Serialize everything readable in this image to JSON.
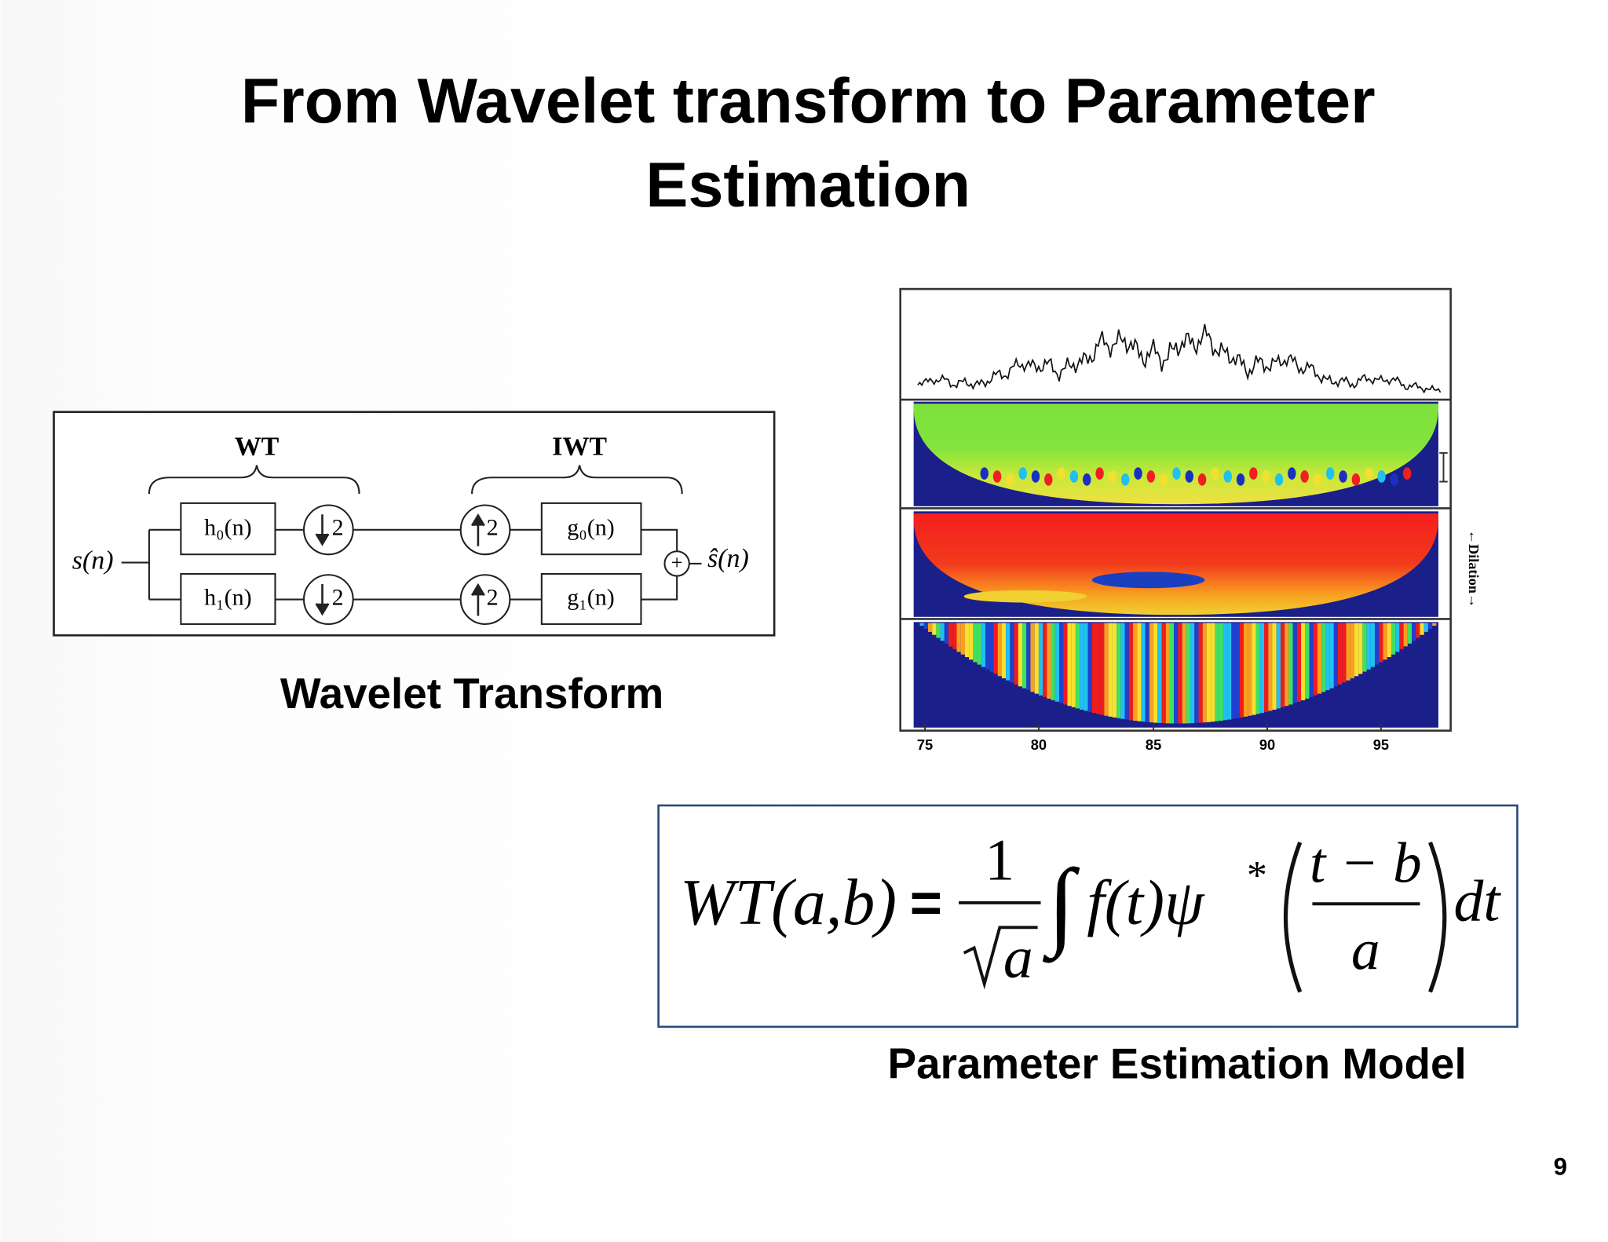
{
  "header": {
    "title_lines": [
      "From Wavelet transform to Parameter",
      "Estimation"
    ]
  },
  "diagram": {
    "labels": {
      "wt": "WT",
      "iwt": "IWT",
      "input": "s(n)",
      "output": "ŝ(n)",
      "sum": "+"
    },
    "filters": [
      "h₀(n)",
      "h₁(n)",
      "g₀(n)",
      "g₁(n)"
    ],
    "down": [
      "2",
      "2"
    ],
    "up": [
      "2",
      "2"
    ],
    "caption": "Wavelet Transform"
  },
  "figure": {
    "xticks": [
      "75",
      "80",
      "85",
      "90",
      "95"
    ],
    "ylabel": "←Dilation→"
  },
  "formula": {
    "lhs": "WT(a,b)",
    "equals": "=",
    "numerator": "1",
    "root": "a",
    "integral": "∫",
    "integrand": "f(t)ψ",
    "star": "*",
    "inner_numerator": "t − b",
    "inner_denominator": "a",
    "differential": "dt"
  },
  "formula_caption": "Parameter Estimation Model",
  "page_number": "9"
}
